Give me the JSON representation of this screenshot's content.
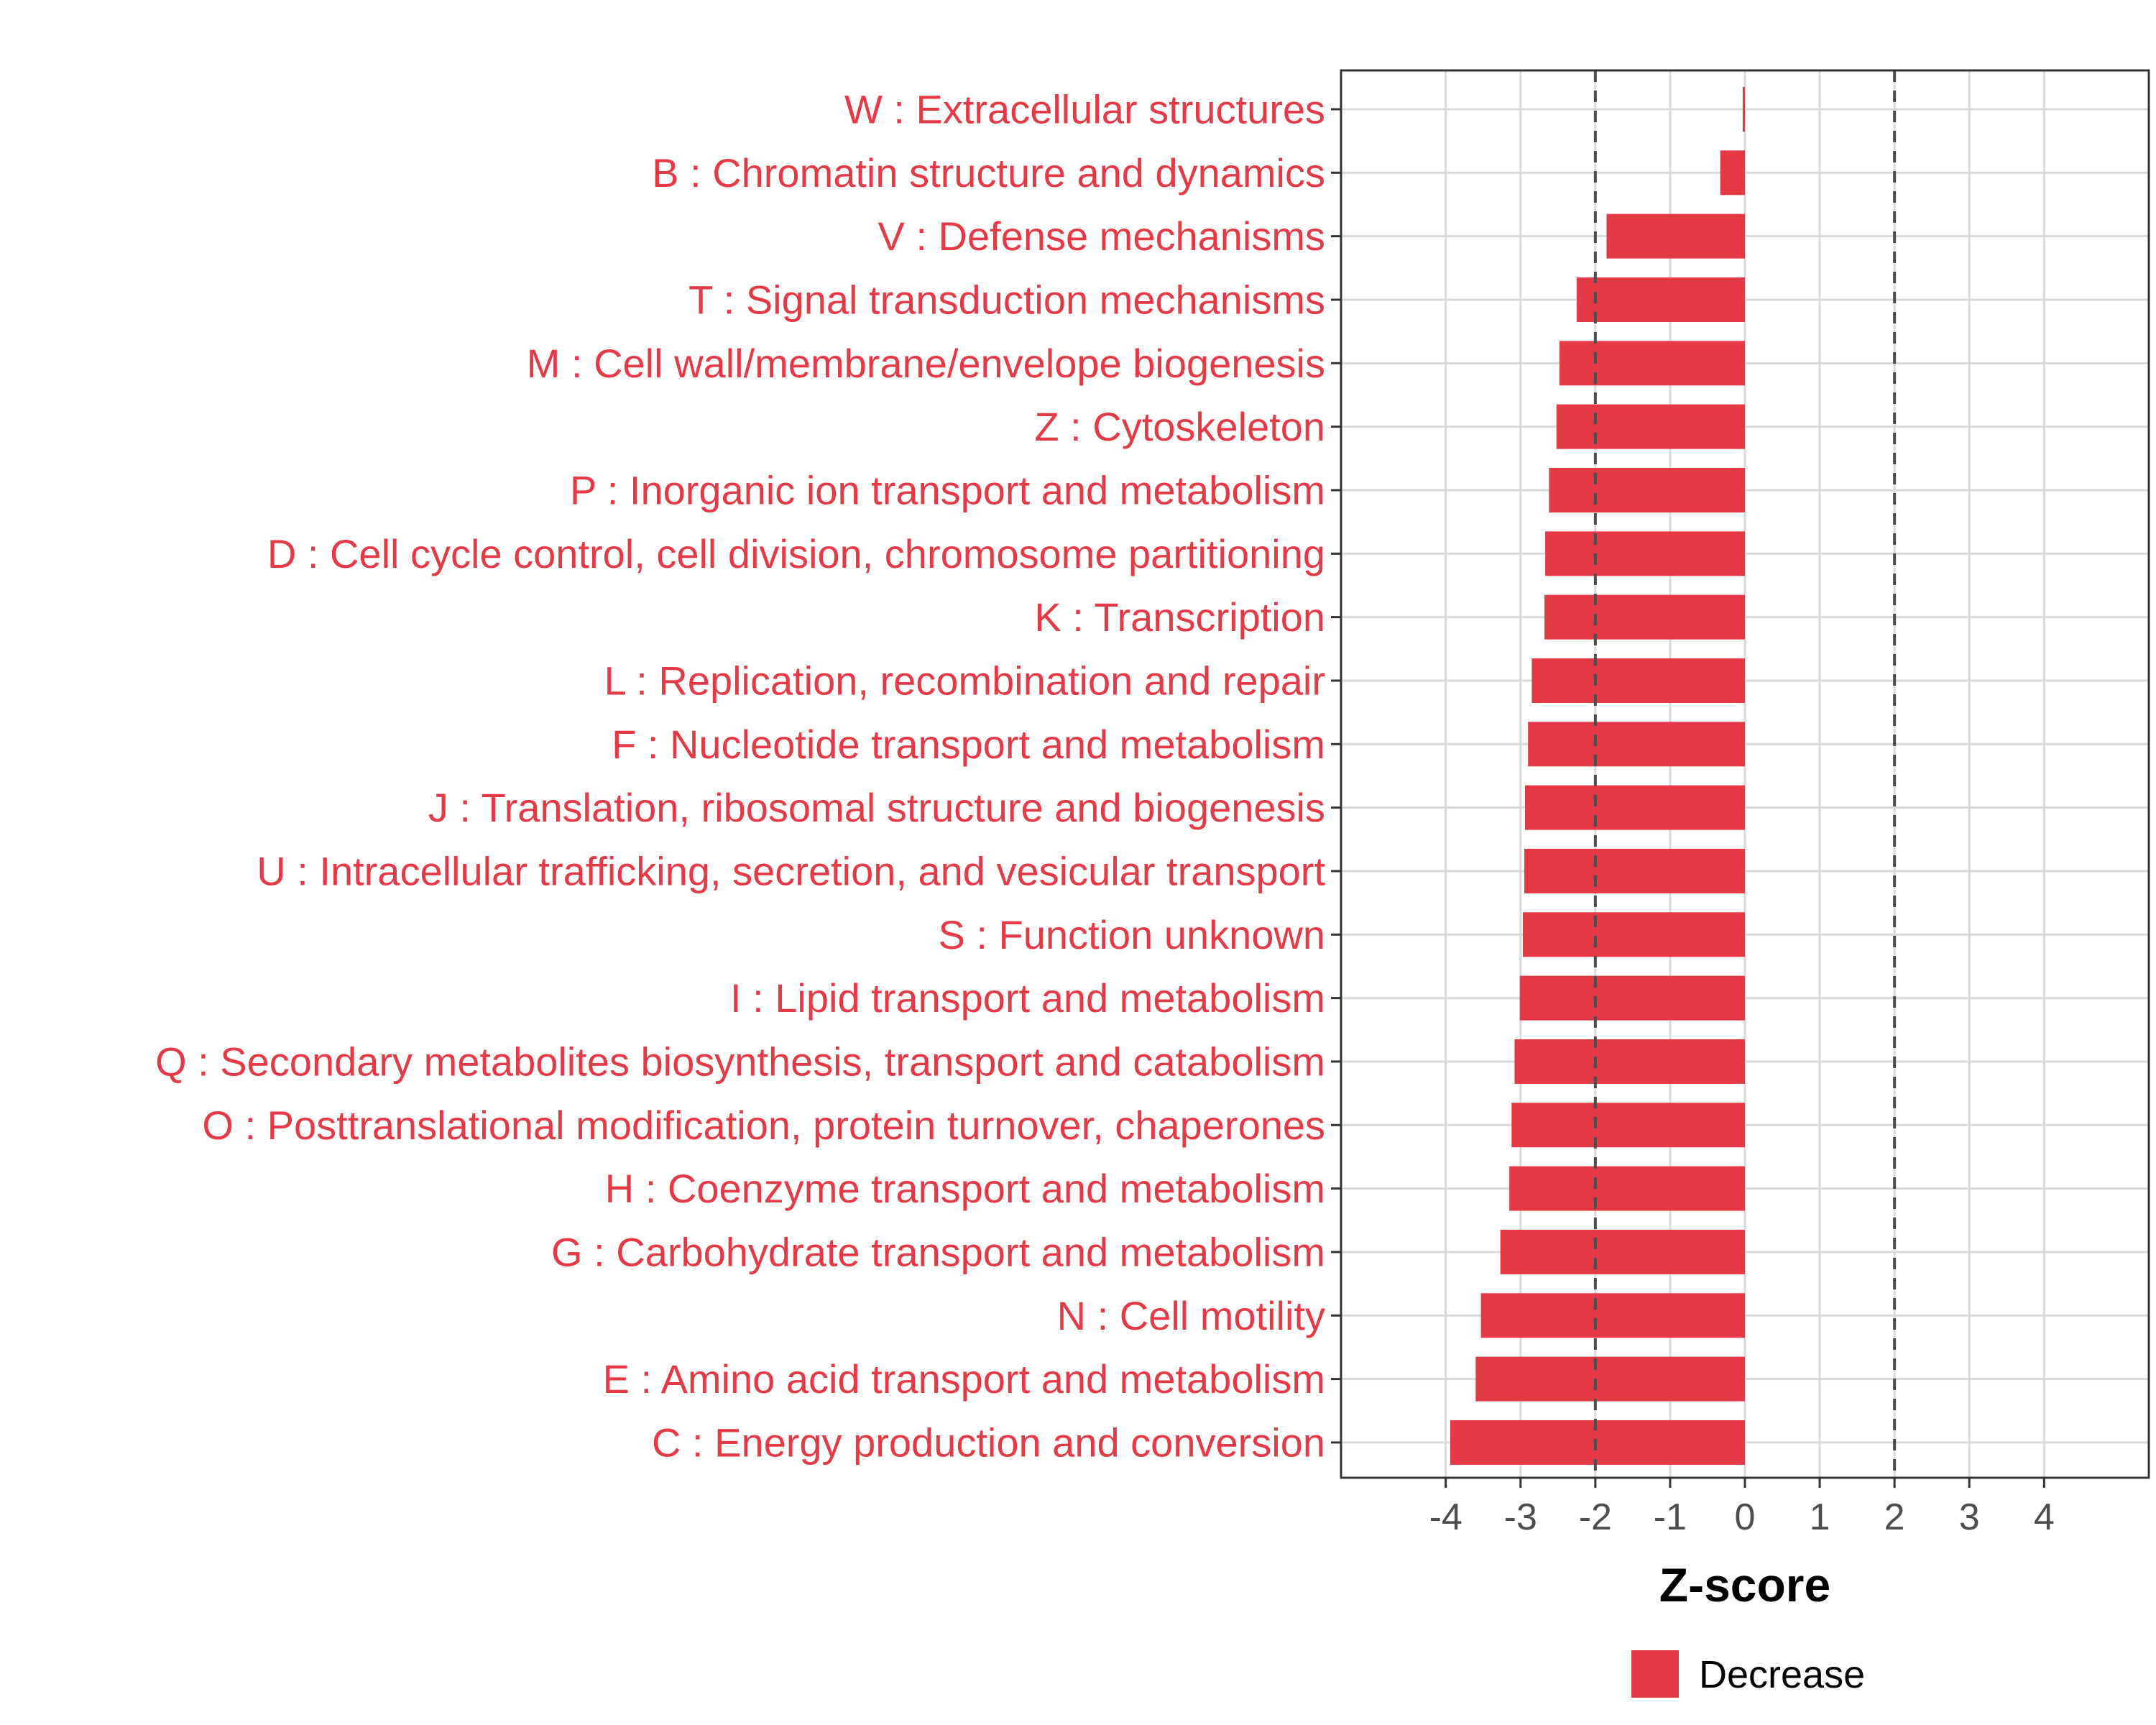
{
  "chart_data": {
    "type": "bar",
    "orientation": "horizontal",
    "categories": [
      "W : Extracellular structures",
      "B : Chromatin structure and dynamics",
      "V : Defense mechanisms",
      "T : Signal transduction mechanisms",
      "M : Cell wall/membrane/envelope biogenesis",
      "Z : Cytoskeleton",
      "P : Inorganic ion transport and metabolism",
      "D : Cell cycle control, cell division, chromosome partitioning",
      "K : Transcription",
      "L : Replication, recombination and repair",
      "F : Nucleotide transport and metabolism",
      "J : Translation, ribosomal structure and biogenesis",
      "U : Intracellular trafficking, secretion, and vesicular transport",
      "S : Function unknown",
      "I : Lipid transport and metabolism",
      "Q : Secondary metabolites biosynthesis, transport and catabolism",
      "O : Posttranslational modification, protein turnover, chaperones",
      "H : Coenzyme transport and metabolism",
      "G : Carbohydrate transport and metabolism",
      "N : Cell motility",
      "E : Amino acid transport and metabolism",
      "C : Energy production and conversion"
    ],
    "values": [
      -0.03,
      -0.33,
      -1.85,
      -2.25,
      -2.48,
      -2.52,
      -2.62,
      -2.67,
      -2.68,
      -2.85,
      -2.9,
      -2.94,
      -2.95,
      -2.97,
      -3.01,
      -3.08,
      -3.12,
      -3.15,
      -3.27,
      -3.53,
      -3.6,
      -3.94
    ],
    "series_name": "Decrease",
    "xlabel": "Z-score",
    "ylabel": "",
    "xlim": [
      -5.4,
      5.4
    ],
    "xticks": [
      -4,
      -3,
      -2,
      -1,
      0,
      1,
      2,
      3,
      4
    ],
    "xtick_labels": [
      "-4",
      "-3",
      "-2",
      "-1",
      "0",
      "1",
      "2",
      "3",
      "4"
    ],
    "reference_lines": [
      -2,
      2
    ],
    "grid": true,
    "legend": {
      "position": "bottom",
      "entries": [
        {
          "label": "Decrease",
          "color": "#e63946"
        }
      ]
    },
    "colors": {
      "bar": "#e63946",
      "category_label": "#e63946",
      "grid": "#d9d9d9",
      "reference_line": "#4d4d4d",
      "panel_border": "#333333"
    }
  }
}
